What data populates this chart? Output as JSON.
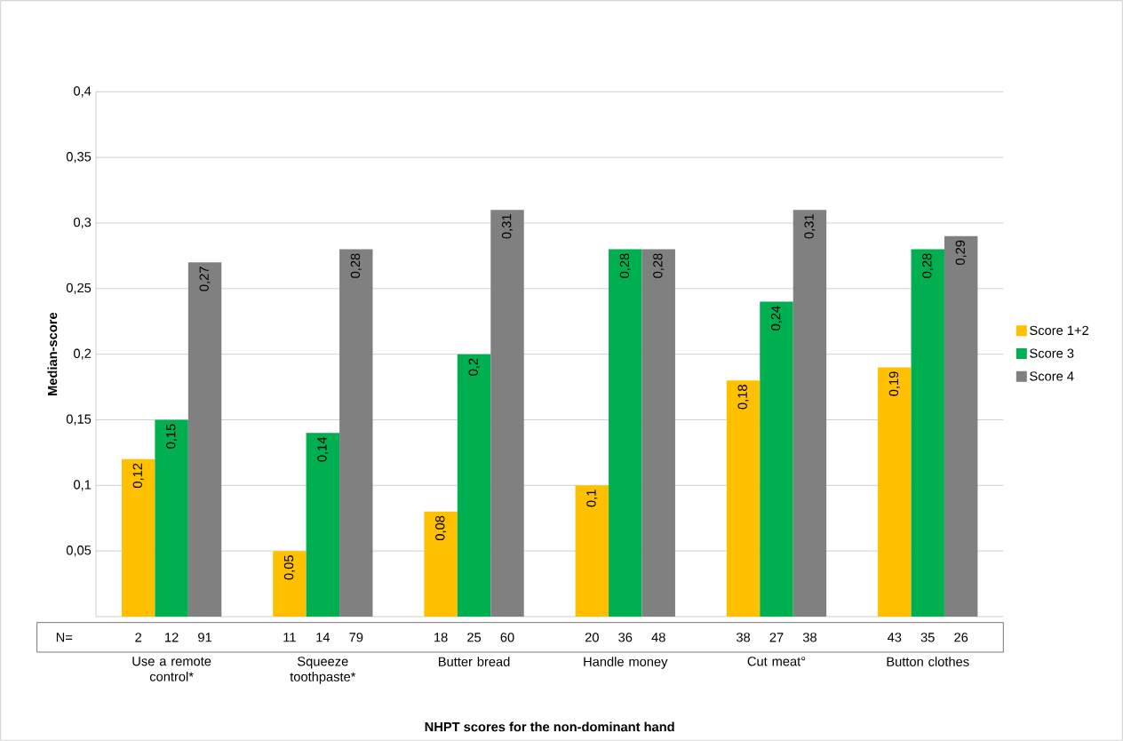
{
  "chart_data": {
    "type": "bar",
    "xlabel": "NHPT scores for the non-dominant  hand",
    "ylabel": "Median-score",
    "categories": [
      "Use a remote control*",
      "Squeeze toothpaste*",
      "Butter bread",
      "Handle money",
      "Cut meat°",
      "Button clothes"
    ],
    "series": [
      {
        "name": "Score 1+2",
        "color": "#ffc000",
        "values": [
          0.12,
          0.05,
          0.08,
          0.1,
          0.18,
          0.19
        ],
        "value_labels": [
          "0,12",
          "0,05",
          "0,08",
          "0,1",
          "0,18",
          "0,19"
        ]
      },
      {
        "name": "Score 3",
        "color": "#00b050",
        "values": [
          0.15,
          0.14,
          0.2,
          0.28,
          0.24,
          0.28
        ],
        "value_labels": [
          "0,15",
          "0,14",
          "0,2",
          "0,28",
          "0,24",
          "0,28"
        ]
      },
      {
        "name": "Score 4",
        "color": "#808080",
        "values": [
          0.27,
          0.28,
          0.31,
          0.28,
          0.31,
          0.29
        ],
        "value_labels": [
          "0,27",
          "0,28",
          "0,31",
          "0,28",
          "0,31",
          "0,29"
        ]
      }
    ],
    "ylim": [
      0,
      0.4
    ],
    "yticks": [
      {
        "value": 0.05,
        "label": "0,05"
      },
      {
        "value": 0.1,
        "label": "0,1"
      },
      {
        "value": 0.15,
        "label": "0,15"
      },
      {
        "value": 0.2,
        "label": "0,2"
      },
      {
        "value": 0.25,
        "label": "0,25"
      },
      {
        "value": 0.3,
        "label": "0,3"
      },
      {
        "value": 0.35,
        "label": "0,35"
      },
      {
        "value": 0.4,
        "label": "0,4"
      }
    ],
    "grid": "y",
    "legend": "right",
    "annotations": [
      "N=",
      "2",
      "12",
      "91",
      "11",
      "14",
      "79",
      "18",
      "25",
      "60",
      "20",
      "36",
      "48",
      "38",
      "27",
      "38",
      "43",
      "35",
      "26"
    ]
  }
}
